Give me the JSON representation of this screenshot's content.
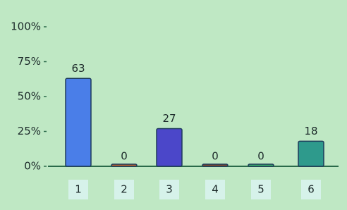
{
  "chart_data": {
    "type": "bar",
    "categories": [
      "1",
      "2",
      "3",
      "4",
      "5",
      "6"
    ],
    "values": [
      63,
      0,
      27,
      0,
      0,
      18
    ],
    "colors": [
      "#4a7ee8",
      "#c8662a",
      "#4b47c9",
      "#8a4a2a",
      "#3cba6a",
      "#2e9a8c"
    ],
    "ylim": [
      0,
      100
    ],
    "yticks": [
      {
        "value": 0,
        "label": "0%"
      },
      {
        "value": 25,
        "label": "25%"
      },
      {
        "value": 50,
        "label": "50%"
      },
      {
        "value": 75,
        "label": "75%"
      },
      {
        "value": 100,
        "label": "100%"
      }
    ],
    "grid": false
  }
}
